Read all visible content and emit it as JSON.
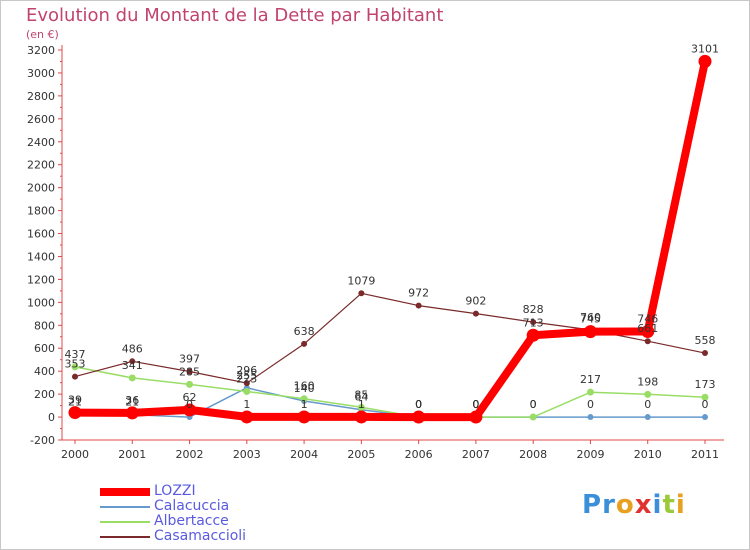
{
  "header": {
    "title": "Evolution du Montant de la Dette par Habitant",
    "subtitle": "(en €)"
  },
  "logo": {
    "text": "Proxiti",
    "letters": [
      {
        "ch": "P",
        "color": "#3b8fd9"
      },
      {
        "ch": "r",
        "color": "#3b8fd9"
      },
      {
        "ch": "o",
        "color": "#e8a020"
      },
      {
        "ch": "x",
        "color": "#e03030"
      },
      {
        "ch": "i",
        "color": "#3b8fd9"
      },
      {
        "ch": "t",
        "color": "#9bc93a"
      },
      {
        "ch": "i",
        "color": "#e8a020"
      }
    ]
  },
  "chart_data": {
    "type": "line",
    "title": "Evolution du Montant de la Dette par Habitant",
    "subtitle": "(en €)",
    "xlabel": "",
    "ylabel": "",
    "x": [
      "2000",
      "2001",
      "2002",
      "2003",
      "2004",
      "2005",
      "2006",
      "2007",
      "2008",
      "2009",
      "2010",
      "2011"
    ],
    "ylim": [
      -200,
      3200
    ],
    "yticks": [
      -200,
      0,
      200,
      400,
      600,
      800,
      1000,
      1200,
      1400,
      1600,
      1800,
      2000,
      2200,
      2400,
      2600,
      2800,
      3000,
      3200
    ],
    "grid": false,
    "legend_position": "bottom-left",
    "series": [
      {
        "name": "LOZZI",
        "color": "#ff0000",
        "values": [
          39,
          36,
          62,
          1,
          1,
          1,
          0,
          0,
          713,
          745,
          746,
          3101
        ]
      },
      {
        "name": "Calacuccia",
        "color": "#6699cc",
        "values": [
          21,
          21,
          0,
          255,
          140,
          64,
          0,
          0,
          0,
          0,
          0,
          0
        ]
      },
      {
        "name": "Albertacce",
        "color": "#99dd66",
        "values": [
          437,
          341,
          285,
          223,
          160,
          85,
          0,
          0,
          0,
          217,
          198,
          173
        ]
      },
      {
        "name": "Casamaccioli",
        "color": "#7a2a2a",
        "values": [
          353,
          486,
          397,
          296,
          638,
          1079,
          972,
          902,
          828,
          760,
          661,
          558
        ]
      }
    ]
  }
}
